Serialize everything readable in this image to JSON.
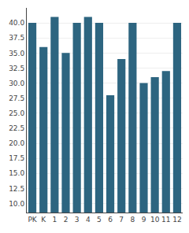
{
  "chart_data": {
    "type": "bar",
    "categories": [
      "PK",
      "K",
      "1",
      "2",
      "3",
      "4",
      "5",
      "6",
      "7",
      "8",
      "9",
      "10",
      "11",
      "12"
    ],
    "values": [
      40,
      36,
      41,
      35,
      40,
      41,
      40,
      28,
      34,
      40,
      30,
      31,
      32,
      40
    ],
    "color": "#2d6580",
    "ylim": [
      8.5,
      42.5
    ],
    "yticks": [
      {
        "value": 10,
        "label": "10.0"
      },
      12.5,
      {
        "value": 15,
        "label": "15.0"
      },
      17.5,
      {
        "value": 20,
        "label": "20.0"
      },
      22.5,
      {
        "value": 25,
        "label": "25.0"
      },
      27.5,
      {
        "value": 30,
        "label": "30.0"
      },
      32.5,
      {
        "value": 35,
        "label": "35.0"
      },
      37.5,
      {
        "value": 40,
        "label": "40.0"
      }
    ],
    "grid": true
  }
}
